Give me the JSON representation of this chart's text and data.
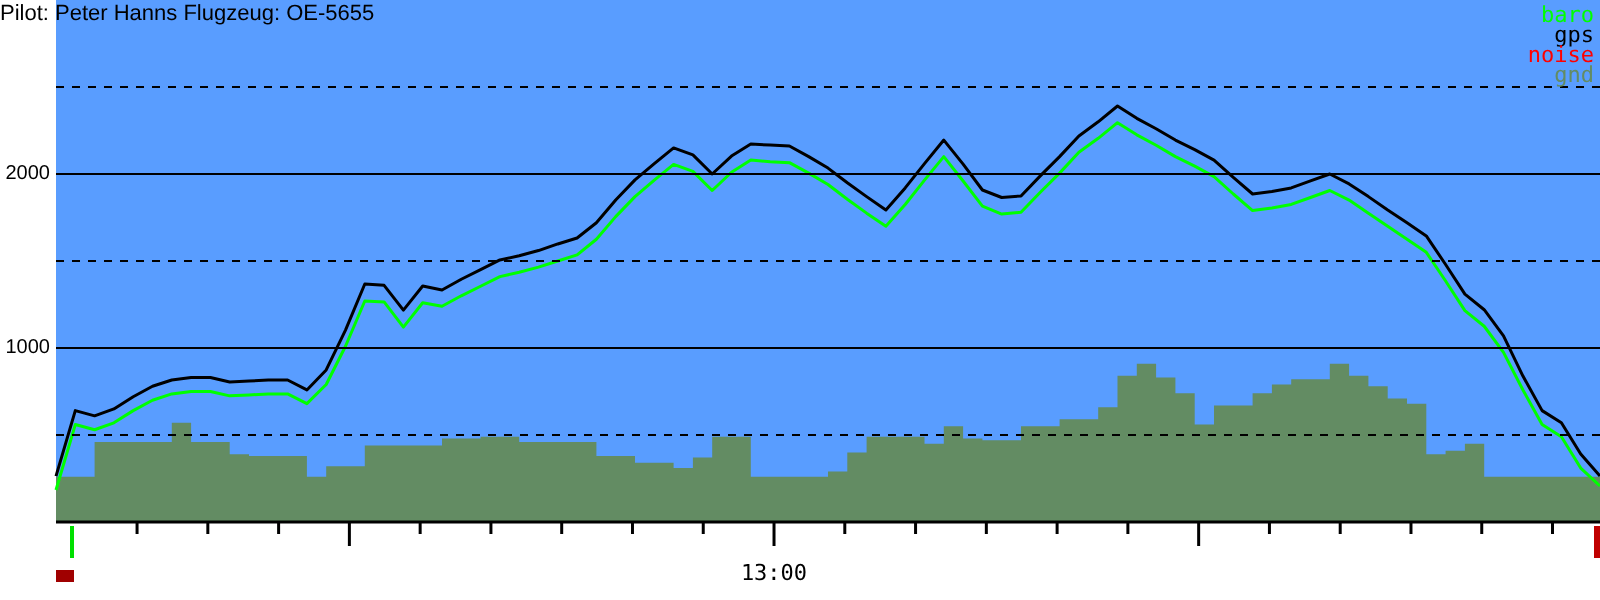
{
  "chart_data": {
    "type": "line",
    "title": "Pilot: Peter Hanns Flugzeug: OE-5655",
    "categories": [
      null,
      null,
      null,
      null,
      null,
      null,
      null,
      null,
      null,
      null,
      null,
      null,
      null,
      null,
      null,
      null,
      null,
      null,
      null,
      null,
      null,
      null,
      null,
      null,
      null,
      null,
      null,
      null,
      null,
      null,
      null,
      null,
      null,
      null,
      null,
      null,
      null,
      null,
      null,
      null,
      null,
      null,
      null,
      null,
      null,
      null,
      null,
      null,
      null,
      null,
      null,
      null,
      null,
      null,
      null,
      null,
      null,
      null,
      null,
      null,
      null,
      null,
      null,
      null,
      null,
      null,
      null,
      null,
      null,
      null,
      null,
      null,
      null,
      null,
      null,
      null,
      null,
      null,
      null,
      null,
      null
    ],
    "series": [
      {
        "name": "baro",
        "color": "#00ff00",
        "values": [
          184,
          560,
          530,
          570,
          640,
          700,
          736,
          750,
          750,
          725,
          730,
          736,
          736,
          680,
          790,
          1010,
          1270,
          1265,
          1120,
          1260,
          1240,
          1300,
          1355,
          1410,
          1435,
          1465,
          1500,
          1535,
          1625,
          1755,
          1870,
          1965,
          2055,
          2015,
          1905,
          2010,
          2080,
          2070,
          2065,
          2005,
          1940,
          1855,
          1775,
          1700,
          1825,
          1965,
          2100,
          1960,
          1815,
          1770,
          1780,
          1895,
          2005,
          2125,
          2205,
          2295,
          2225,
          2165,
          2100,
          2045,
          1985,
          1885,
          1790,
          1805,
          1825,
          1865,
          1905,
          1850,
          1775,
          1700,
          1625,
          1550,
          1385,
          1215,
          1125,
          975,
          760,
          560,
          490,
          310,
          207
        ]
      },
      {
        "name": "gps",
        "color": "#000000",
        "values": [
          264,
          640,
          610,
          650,
          720,
          780,
          816,
          830,
          830,
          805,
          810,
          816,
          816,
          759,
          874,
          1103,
          1368,
          1360,
          1218,
          1356,
          1333,
          1395,
          1450,
          1506,
          1530,
          1560,
          1598,
          1632,
          1720,
          1851,
          1966,
          2060,
          2150,
          2110,
          2000,
          2103,
          2172,
          2166,
          2161,
          2100,
          2034,
          1950,
          1870,
          1793,
          1920,
          2060,
          2195,
          2057,
          1908,
          1865,
          1874,
          1989,
          2100,
          2218,
          2300,
          2391,
          2320,
          2260,
          2195,
          2140,
          2080,
          1980,
          1885,
          1900,
          1920,
          1960,
          2000,
          1943,
          1870,
          1793,
          1720,
          1644,
          1480,
          1310,
          1220,
          1070,
          840,
          640,
          570,
          391,
          264
        ]
      },
      {
        "name": "noise",
        "color": "#ff0000",
        "values": [
          null,
          null,
          null,
          null,
          null,
          null,
          null,
          null,
          null,
          null,
          null,
          null,
          null,
          null,
          null,
          null,
          null,
          null,
          null,
          null,
          null,
          null,
          null,
          null,
          null,
          null,
          null,
          null,
          null,
          null,
          null,
          null,
          null,
          null,
          null,
          null,
          null,
          null,
          null,
          null,
          null,
          null,
          null,
          null,
          null,
          null,
          null,
          null,
          null,
          null,
          null,
          null,
          null,
          null,
          null,
          null,
          null,
          null,
          null,
          null,
          null,
          null,
          null,
          null,
          null,
          null,
          null,
          null,
          null,
          null,
          null,
          null,
          null,
          null,
          null,
          null,
          null,
          null,
          null,
          null,
          null
        ]
      },
      {
        "name": "gnd",
        "type": "area",
        "color": "#638c63",
        "values": [
          260,
          260,
          460,
          460,
          460,
          460,
          570,
          460,
          460,
          390,
          380,
          380,
          380,
          260,
          320,
          320,
          440,
          440,
          440,
          440,
          480,
          480,
          490,
          490,
          460,
          460,
          460,
          460,
          380,
          380,
          340,
          340,
          310,
          370,
          490,
          490,
          260,
          260,
          260,
          260,
          290,
          400,
          490,
          490,
          490,
          450,
          550,
          480,
          470,
          470,
          550,
          550,
          590,
          590,
          660,
          840,
          910,
          830,
          740,
          560,
          670,
          670,
          740,
          790,
          820,
          820,
          910,
          840,
          780,
          710,
          680,
          390,
          410,
          450,
          260,
          260,
          260,
          260,
          260,
          260,
          260
        ]
      }
    ],
    "ylim": [
      0,
      3000
    ],
    "yticks": [
      {
        "value": 500,
        "label": null
      },
      1000,
      {
        "value": 1500,
        "label": null
      },
      2000,
      {
        "value": 2500,
        "label": null
      }
    ],
    "annotations": [
      "13:00"
    ],
    "grid": "y",
    "legend": "top right"
  }
}
